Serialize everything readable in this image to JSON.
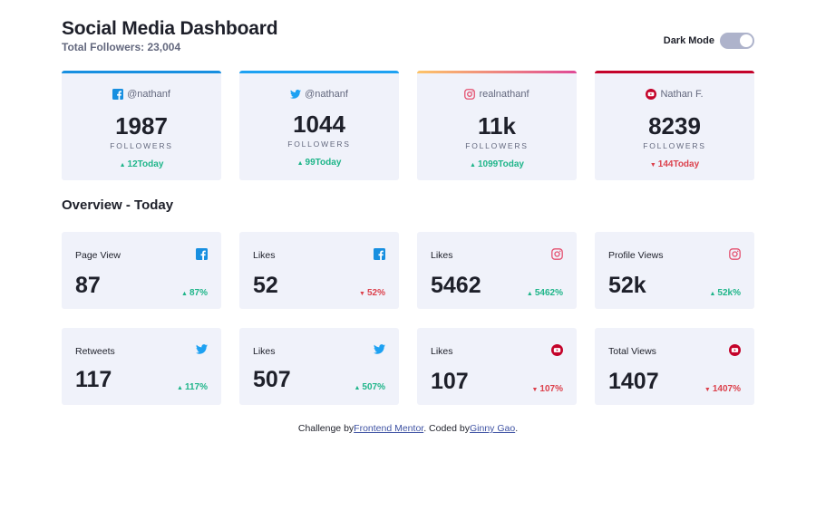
{
  "header": {
    "title": "Social Media Dashboard",
    "total_followers": "Total Followers: 23,004",
    "toggle_label": "Dark Mode"
  },
  "cards": [
    {
      "network": "facebook",
      "icon": "facebook-icon",
      "handle": "@nathanf",
      "count": "1987",
      "unit": "FOLLOWERS",
      "today": "12Today",
      "trend": "up"
    },
    {
      "network": "twitter",
      "icon": "twitter-icon",
      "handle": "@nathanf",
      "count": "1044",
      "unit": "FOLLOWERS",
      "today": "99Today",
      "trend": "up"
    },
    {
      "network": "instagram",
      "icon": "instagram-icon",
      "handle": "realnathanf",
      "count": "11k",
      "unit": "FOLLOWERS",
      "today": "1099Today",
      "trend": "up"
    },
    {
      "network": "youtube",
      "icon": "youtube-icon",
      "handle": "Nathan F.",
      "count": "8239",
      "unit": "FOLLOWERS",
      "today": "144Today",
      "trend": "down"
    }
  ],
  "overview": {
    "title": "Overview - Today",
    "items": [
      {
        "label": "Page View",
        "icon": "facebook-icon",
        "value": "87",
        "pct": "87%",
        "trend": "up"
      },
      {
        "label": "Likes",
        "icon": "facebook-icon",
        "value": "52",
        "pct": "52%",
        "trend": "down"
      },
      {
        "label": "Likes",
        "icon": "instagram-icon",
        "value": "5462",
        "pct": "5462%",
        "trend": "up"
      },
      {
        "label": "Profile Views",
        "icon": "instagram-icon",
        "value": "52k",
        "pct": "52k%",
        "trend": "up"
      },
      {
        "label": "Retweets",
        "icon": "twitter-icon",
        "value": "117",
        "pct": "117%",
        "trend": "up"
      },
      {
        "label": "Likes",
        "icon": "twitter-icon",
        "value": "507",
        "pct": "507%",
        "trend": "up"
      },
      {
        "label": "Likes",
        "icon": "youtube-icon",
        "value": "107",
        "pct": "107%",
        "trend": "down"
      },
      {
        "label": "Total Views",
        "icon": "youtube-icon",
        "value": "1407",
        "pct": "1407%",
        "trend": "down"
      }
    ]
  },
  "footer": {
    "challenge_prefix": "Challenge by",
    "challenge_link": "Frontend Mentor",
    "coded_prefix": ". Coded by",
    "coded_link": "Ginny Gao",
    "suffix": "."
  },
  "colors": {
    "facebook": "#178fe0",
    "twitter": "#1da1f2",
    "youtube": "#c4032a",
    "up": "#1eb589",
    "down": "#dc414c",
    "card_bg": "#f0f2fa"
  }
}
